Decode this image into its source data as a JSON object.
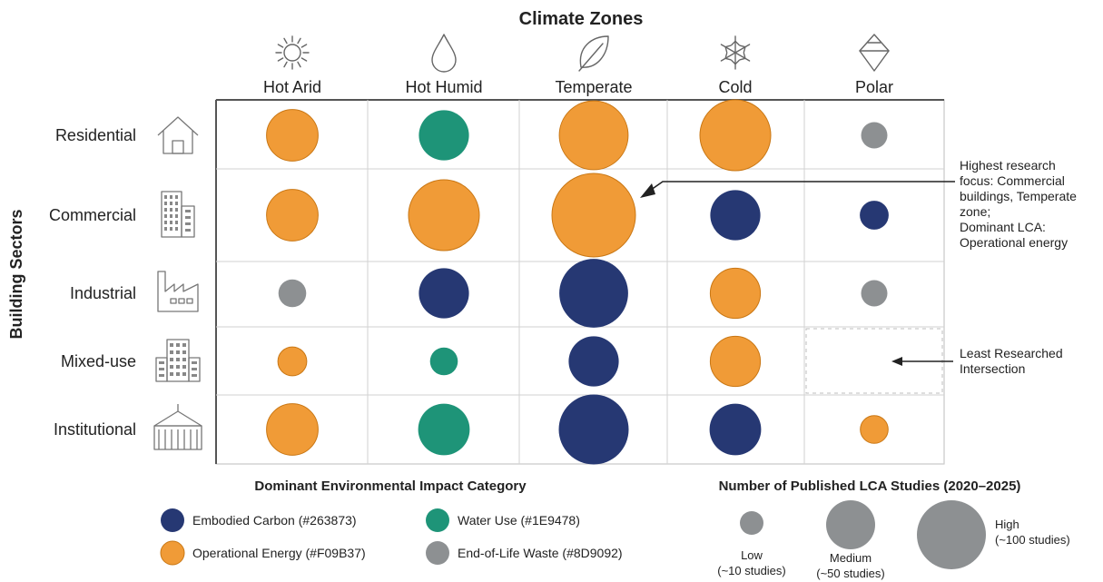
{
  "chart_data": {
    "type": "scatter",
    "title": "Climate Zones",
    "xlabel": "Climate Zones",
    "ylabel": "Building Sectors",
    "x_categories": [
      "Hot Arid",
      "Hot Humid",
      "Temperate",
      "Cold",
      "Polar"
    ],
    "y_categories": [
      "Residential",
      "Commercial",
      "Industrial",
      "Mixed-use",
      "Institutional"
    ],
    "size_metric": "Number of Published LCA Studies (2020–2025)",
    "color_metric": "Dominant Environmental Impact Category",
    "points": [
      {
        "sector": "Residential",
        "zone": "Hot Arid",
        "studies": 38,
        "category": "Operational Energy"
      },
      {
        "sector": "Residential",
        "zone": "Hot Humid",
        "studies": 36,
        "category": "Water Use"
      },
      {
        "sector": "Residential",
        "zone": "Temperate",
        "studies": 68,
        "category": "Operational Energy"
      },
      {
        "sector": "Residential",
        "zone": "Cold",
        "studies": 72,
        "category": "Operational Energy"
      },
      {
        "sector": "Residential",
        "zone": "Polar",
        "studies": 10,
        "category": "End-of-Life Waste"
      },
      {
        "sector": "Commercial",
        "zone": "Hot Arid",
        "studies": 38,
        "category": "Operational Energy"
      },
      {
        "sector": "Commercial",
        "zone": "Hot Humid",
        "studies": 72,
        "category": "Operational Energy"
      },
      {
        "sector": "Commercial",
        "zone": "Temperate",
        "studies": 100,
        "category": "Operational Energy"
      },
      {
        "sector": "Commercial",
        "zone": "Cold",
        "studies": 36,
        "category": "Embodied Carbon"
      },
      {
        "sector": "Commercial",
        "zone": "Polar",
        "studies": 12,
        "category": "Embodied Carbon"
      },
      {
        "sector": "Industrial",
        "zone": "Hot Arid",
        "studies": 11,
        "category": "End-of-Life Waste"
      },
      {
        "sector": "Industrial",
        "zone": "Hot Humid",
        "studies": 36,
        "category": "Embodied Carbon"
      },
      {
        "sector": "Industrial",
        "zone": "Temperate",
        "studies": 68,
        "category": "Embodied Carbon"
      },
      {
        "sector": "Industrial",
        "zone": "Cold",
        "studies": 36,
        "category": "Operational Energy"
      },
      {
        "sector": "Industrial",
        "zone": "Polar",
        "studies": 10,
        "category": "End-of-Life Waste"
      },
      {
        "sector": "Mixed-use",
        "zone": "Hot Arid",
        "studies": 12,
        "category": "Operational Energy"
      },
      {
        "sector": "Mixed-use",
        "zone": "Hot Humid",
        "studies": 11,
        "category": "Water Use"
      },
      {
        "sector": "Mixed-use",
        "zone": "Temperate",
        "studies": 36,
        "category": "Embodied Carbon"
      },
      {
        "sector": "Mixed-use",
        "zone": "Cold",
        "studies": 36,
        "category": "Operational Energy"
      },
      {
        "sector": "Institutional",
        "zone": "Hot Arid",
        "studies": 38,
        "category": "Operational Energy"
      },
      {
        "sector": "Institutional",
        "zone": "Hot Humid",
        "studies": 38,
        "category": "Water Use"
      },
      {
        "sector": "Institutional",
        "zone": "Temperate",
        "studies": 70,
        "category": "Embodied Carbon"
      },
      {
        "sector": "Institutional",
        "zone": "Cold",
        "studies": 38,
        "category": "Embodied Carbon"
      },
      {
        "sector": "Institutional",
        "zone": "Polar",
        "studies": 11,
        "category": "Operational Energy"
      }
    ],
    "categories_legend": [
      {
        "name": "Embodied Carbon",
        "label": "Embodied Carbon (#263873)",
        "color": "#263873"
      },
      {
        "name": "Water Use",
        "label": "Water Use (#1E9478)",
        "color": "#1E9478"
      },
      {
        "name": "Operational Energy",
        "label": "Operational Energy (#F09B37)",
        "color": "#F09B37"
      },
      {
        "name": "End-of-Life Waste",
        "label": "End-of-Life Waste (#8D9092)",
        "color": "#8D9092"
      }
    ],
    "size_legend": [
      {
        "label": "Low",
        "sub": "(~10 studies)",
        "studies": 10
      },
      {
        "label": "Medium",
        "sub": "(~50 studies)",
        "studies": 50
      },
      {
        "label": "High",
        "sub": "(~100 studies)",
        "studies": 100
      }
    ],
    "annotations": [
      {
        "text_lines": [
          "Highest research",
          "focus: Commercial",
          "buildings, Temperate",
          "zone;",
          "Dominant LCA:",
          "Operational energy"
        ],
        "target": {
          "sector": "Commercial",
          "zone": "Temperate"
        }
      },
      {
        "text_lines": [
          "Least Researched",
          "Intersection"
        ],
        "target": {
          "sector": "Mixed-use",
          "zone": "Polar"
        }
      }
    ],
    "legend_titles": {
      "category": "Dominant Environmental Impact Category",
      "size": "Number of Published LCA Studies (2020–2025)"
    },
    "grid": true,
    "legend_position": "bottom",
    "zone_icons": [
      "sun-icon",
      "droplet-icon",
      "leaf-icon",
      "snowflake-icon",
      "ice-crystal-icon"
    ],
    "sector_icons": [
      "house-icon",
      "office-building-icon",
      "factory-icon",
      "mixed-use-building-icon",
      "institution-icon"
    ]
  }
}
